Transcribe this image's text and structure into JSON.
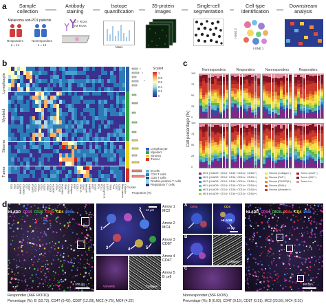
{
  "panel_a": {
    "letter": "a",
    "steps": [
      "Sample collection",
      "Antibody staining",
      "Isotope quantification",
      "35-protein images",
      "Single-cell segmentation",
      "Cell type identification",
      "Downstream analysis"
    ],
    "cohort_title": "Melanoma anti-PD1 patients",
    "responders_label": "Responders",
    "responders_n": "n = 14",
    "nonresponders_label": "Nonresponders",
    "nonresponders_n": "n = 12",
    "roi_labels": [
      "CT ROIs",
      "IM ROIs"
    ],
    "mass_label": "Mass",
    "tsne1": "t-SNE 1",
    "tsne2": "t-SNE 2"
  },
  "panel_b": {
    "letter": "b",
    "row_groups": [
      "Lymphocyte",
      "Myeloid",
      "Stroma",
      "Tumor"
    ],
    "col_labels": [
      "CD3",
      "CD4",
      "CD8",
      "CD45RA",
      "CD45RO",
      "CD7",
      "CD20",
      "FOXP3",
      "CD11b",
      "CD11c",
      "CD14",
      "CD16",
      "CD68",
      "CD163",
      "HLADR",
      "CD1c",
      "CD206",
      "PDGFRb",
      "SMA",
      "Vimentin",
      "Collagen",
      "FAP",
      "CD31",
      "SOX10",
      "S100",
      "MelanA",
      "HMB45",
      "Ki67",
      "ICOS",
      "PD1",
      "PDL1",
      "Granzyme B",
      "LAG3",
      "TIM3",
      "Tbet",
      "CD57",
      "CD38",
      "Beta-catenin",
      "Caveolin"
    ],
    "scale_title": "Scaled",
    "scale_ticks": [
      "1",
      "0.8",
      "0.6",
      "0.4",
      "0.2",
      "0"
    ],
    "cluster_label": "Cluster",
    "proportion_label": "Proportion (%)",
    "legend_groups": [
      "Lymphocyte",
      "Myeloid",
      "Stroma",
      "Tumor"
    ],
    "legend_groups_colors": [
      "#2d5fa8",
      "#3aa34a",
      "#e8d21e",
      "#d2342b"
    ],
    "legend_cells": [
      "B cells",
      "CD4 T cells",
      "CD8 T cells",
      "Double-positive T cells",
      "Regulatory T cells"
    ],
    "legend_cells_colors": [
      "#6cb0d8",
      "#2f7cc0",
      "#13508c",
      "#9bd1e8",
      "#1d3a70"
    ]
  },
  "panel_c": {
    "letter": "c",
    "col_titles": [
      "Nonresponders",
      "Responders",
      "Nonresponders",
      "Responders"
    ],
    "row_labels": [
      "IM",
      "CT"
    ],
    "ylabel": "Cell percentage (%)",
    "yticks": [
      "100",
      "75",
      "50",
      "25",
      "0"
    ],
    "legend": [
      "MC1 (HLADR⁺ CD14⁺ CD16⁺ CD11c⁺ CD11b⁺)",
      "MC2 (HLADR⁺ CD14⁺ CD16⁺ CD11c⁺ CD11b⁺)",
      "MC3 (HLADR⁺ CD14⁺ CD16⁺ CD11c⁺ CD11b⁺)",
      "MC4 (HLADR⁺ CD14⁺ CD16⁺ CD11c⁺ CD11b⁺)",
      "MC5 (HLADR⁺ CD14⁺ CD16⁺ CD11c⁺ CD11b⁺)",
      "MC6 (HLADR⁺ CD14⁺ CD16⁺ CD11c⁺ CD11b⁺)",
      "Stroma (Collagen⁺)",
      "Stroma (FAP⁺)",
      "Stroma (PDGFRβ⁺)",
      "Stroma (SMA⁺)",
      "Stroma (Vimentin⁺)",
      "Tumor (CAIX⁺)",
      "Tumor (Ki67⁺)",
      "Tumor k.n."
    ],
    "legend_colors": [
      "#7b2a8a",
      "#2e4fa0",
      "#3f8fc6",
      "#5fc0c0",
      "#62b25a",
      "#b5d44a",
      "#f1e04a",
      "#f2b63c",
      "#ea8a2e",
      "#e05a2a",
      "#c93a2c",
      "#a82226",
      "#7d1520",
      "#e58aa0"
    ]
  },
  "panel_d": {
    "letter": "d",
    "left_channels": [
      "HLADR",
      "CD14",
      "CD20",
      "CD8a",
      "CD4",
      "DNA"
    ],
    "left_channel_colors": [
      "#ffffff",
      "#e14ad6",
      "#3fd24a",
      "#ff3b3b",
      "#ffdd33",
      "#4a8dff"
    ],
    "inset_labels": [
      "1",
      "2",
      "3",
      "4",
      "5"
    ],
    "inset_scale": "10 μm",
    "arrows": [
      {
        "name": "Arrow 1",
        "cell": "MC2"
      },
      {
        "name": "Arrow 2",
        "cell": "MC4"
      },
      {
        "name": "Arrow 3",
        "cell": "CD8T"
      },
      {
        "name": "Arrow 4",
        "cell": "CD4T"
      },
      {
        "name": "Arrow 5",
        "cell": "B cell"
      }
    ],
    "collagen_label": "Collagen",
    "vimentin_label": "Vimentin",
    "left_scale": "100 μm",
    "left_caption": "Responder (66F ROI10)",
    "left_percent": "Percentage (%): B (10.73), CD4T (9.42), CD8T (12.28), MC2 (4.76), MC4 (4.22)",
    "mid_letters": [
      "A",
      "B",
      "C"
    ],
    "mid_channels": [
      "CD8a",
      "CD4"
    ],
    "mid_hladr": "HLADR",
    "mid_scale": "10 μm",
    "right_channels": [
      "HLADR",
      "CD14",
      "CD20",
      "CD8a",
      "CD4",
      "DNA"
    ],
    "right_scale": "100 μm",
    "right_caption": "Nonresponder (55F ROI9)",
    "right_percent": "Percentage (%): B (0.03), CD4T (0.15), CD8T (0.51), MC2 (23.56), MC4 (0.51)"
  }
}
